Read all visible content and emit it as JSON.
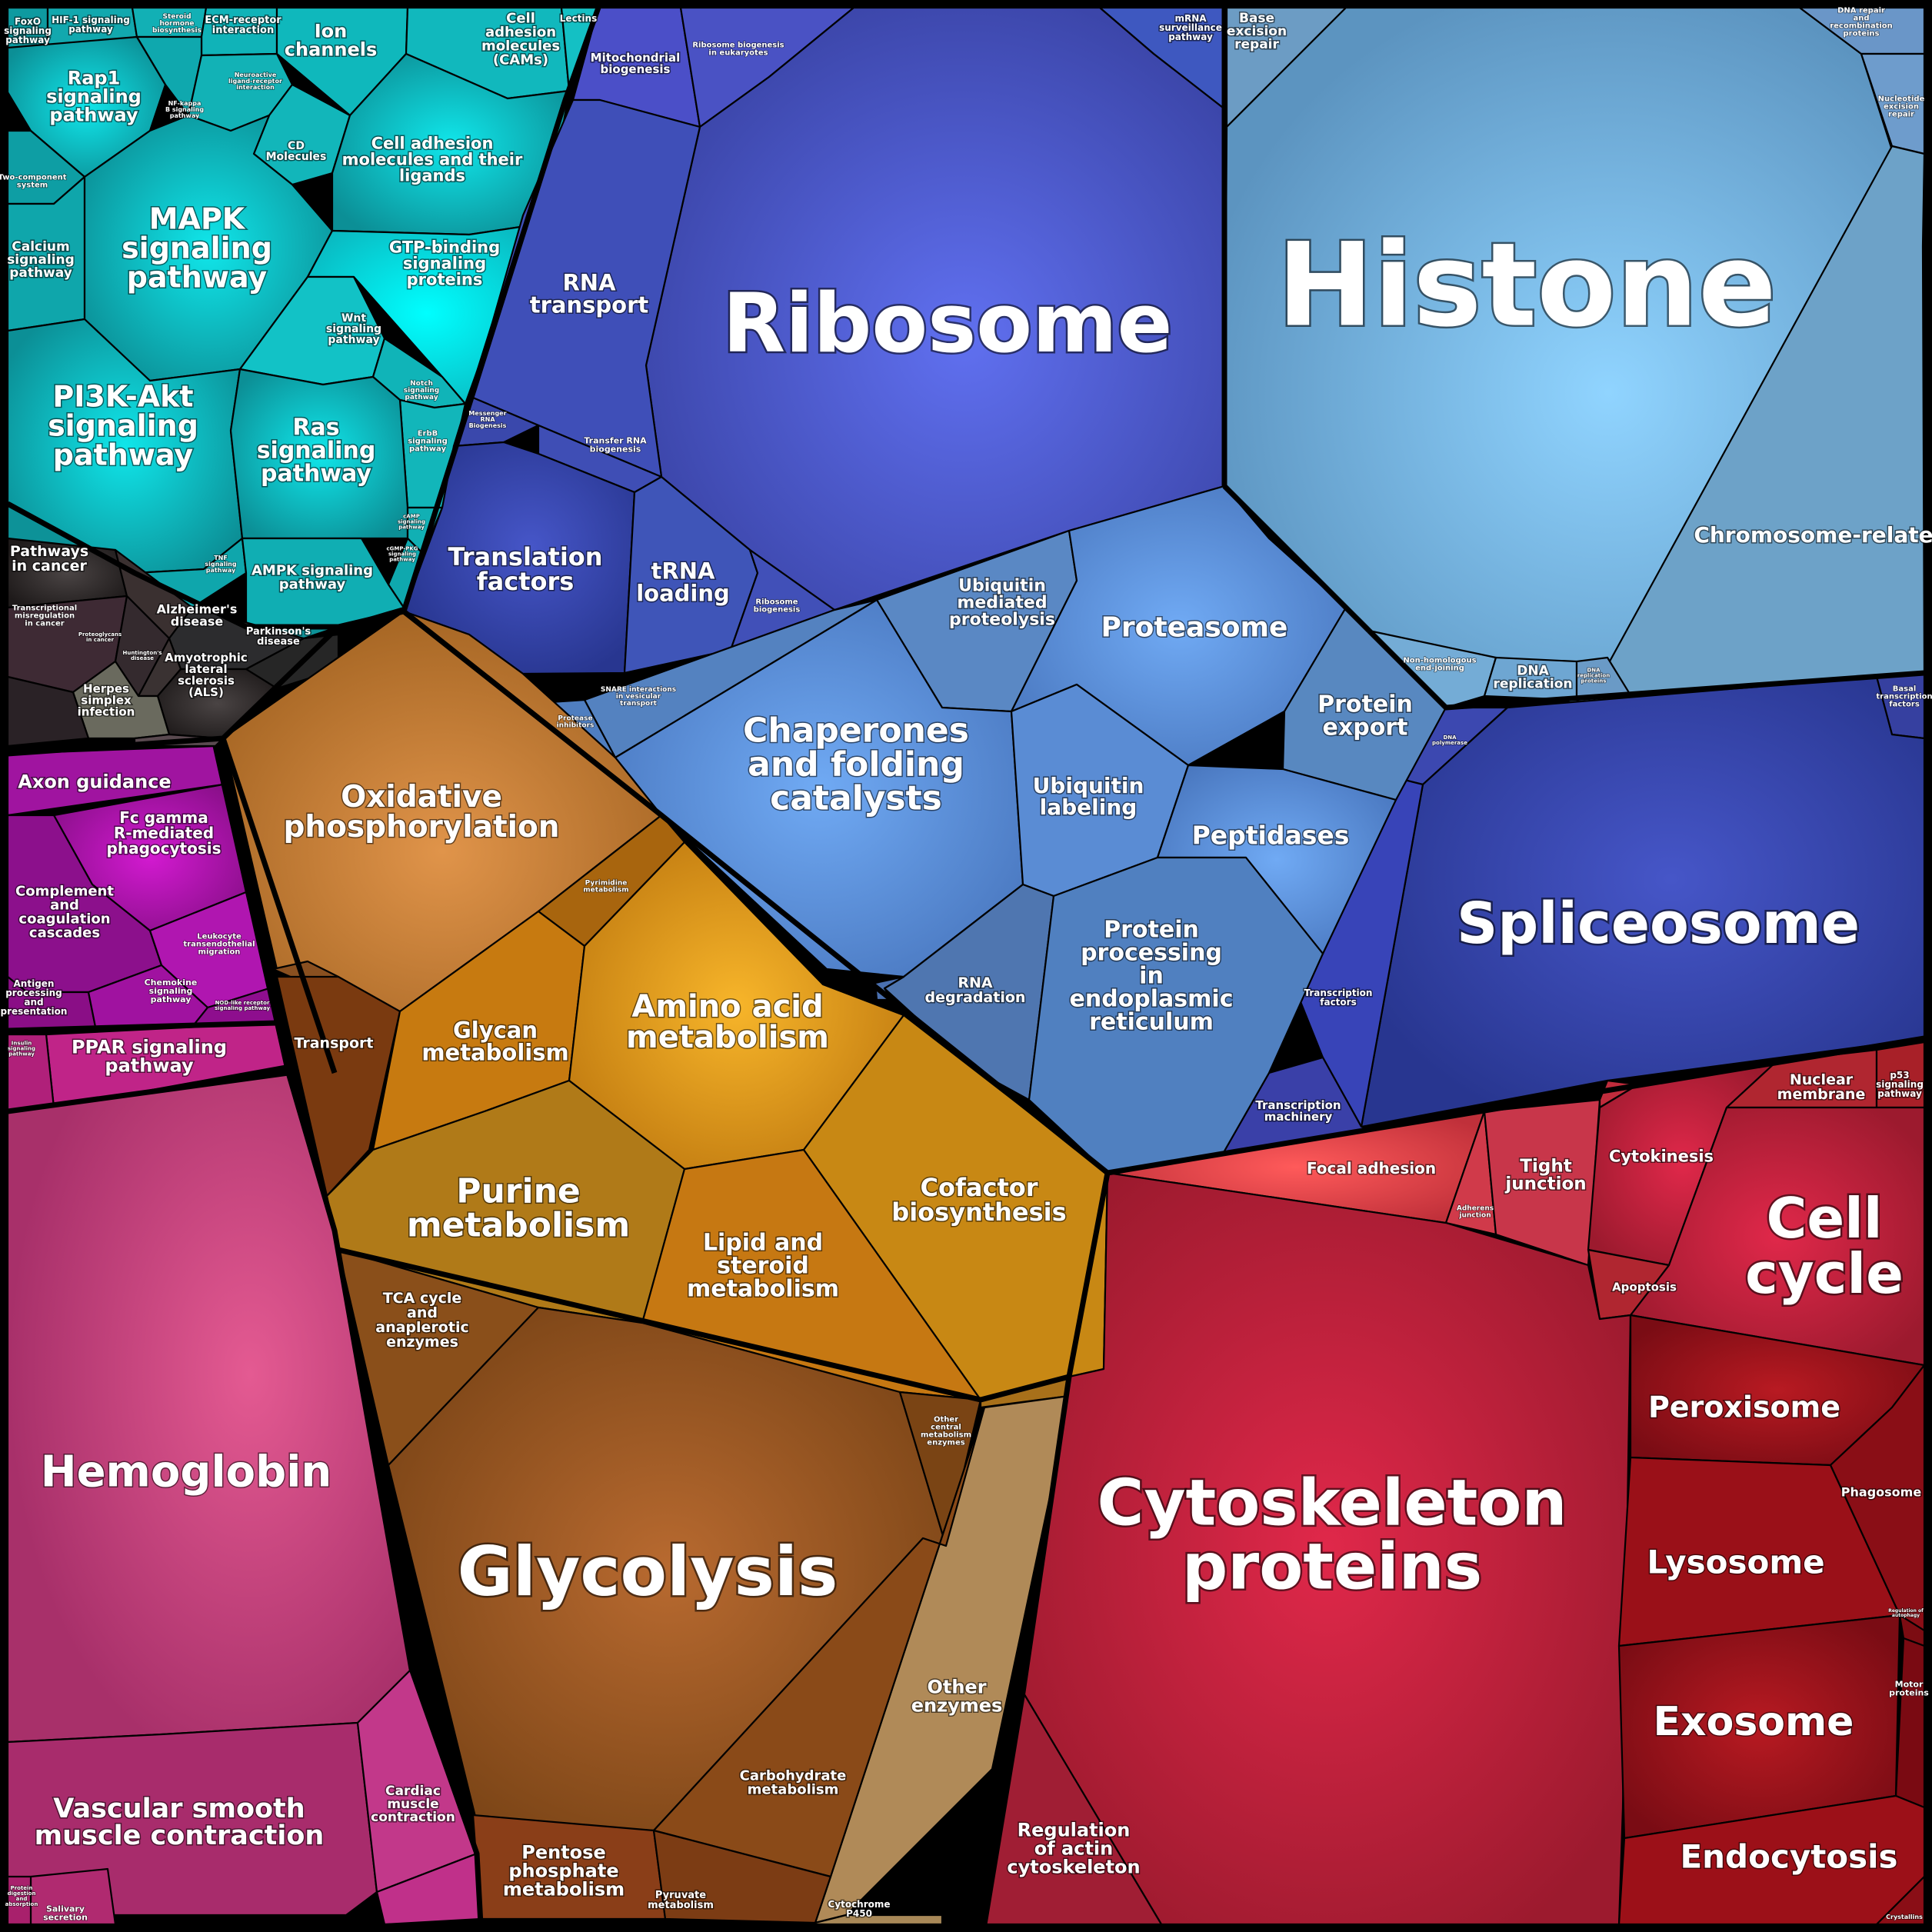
{
  "title": "",
  "groups": [
    {
      "name": "signaling",
      "color": "#17b3b8"
    },
    {
      "name": "genetic_information",
      "color": "#4a5bd0"
    },
    {
      "name": "chromatin",
      "color": "#6aaad8"
    },
    {
      "name": "protein_fate",
      "color": "#5a8fd8"
    },
    {
      "name": "metabolism",
      "color": "#c07a1a"
    },
    {
      "name": "immune_system",
      "color": "#b21aa8"
    },
    {
      "name": "circulation",
      "color": "#c0407a"
    },
    {
      "name": "cellular_processes",
      "color": "#b01a2e"
    },
    {
      "name": "disease",
      "color": "#333333"
    }
  ],
  "labels": {
    "foxo": "FoxO signaling pathway",
    "hif1": "HIF-1 signaling pathway",
    "steroid": "Steroid hormone biosynthesis",
    "ecm": "ECM-receptor interaction",
    "ion": "Ion channels",
    "cams": "Cell adhesion molecules (CAMs)",
    "lectins": "Lectins",
    "rap1": "Rap1 signaling pathway",
    "nfkb": "NF-kappa B signaling pathway",
    "neuro": "Neuroactive ligand-receptor interaction",
    "cd": "CD Molecules",
    "cam_ligands": "Cell adhesion molecules and their ligands",
    "twocomp": "Two-component system",
    "calcium": "Calcium signaling pathway",
    "mapk": "MAPK signaling pathway",
    "gtp": "GTP-binding signaling proteins",
    "wnt": "Wnt signaling pathway",
    "notch": "Notch signaling pathway",
    "erbb": "ErbB signaling pathway",
    "pi3k": "PI3K-Akt signaling pathway",
    "ras": "Ras signaling pathway",
    "camp": "cAMP signaling pathway",
    "cgmp": "cGMP-PKG signaling pathway",
    "tnf": "TNF signaling pathway",
    "ampk": "AMPK signaling pathway",
    "pathways_cancer": "Pathways in cancer",
    "transcriptional": "Transcriptional misregulation in cancer",
    "alzheimer": "Alzheimer's disease",
    "parkinson": "Parkinson's disease",
    "als": "Amyotrophic lateral sclerosis (ALS)",
    "herpes": "Herpes simplex infection",
    "huntington": "Huntington's disease",
    "proteoglycans": "Proteoglycans in cancer",
    "mito_bio": "Mitochondrial biogenesis",
    "ribo_bio_euk": "Ribosome biogenesis in eukaryotes",
    "mrna_surv": "mRNA surveillance pathway",
    "ribosome": "Ribosome",
    "rna_transport": "RNA transport",
    "messenger_rna": "Messenger RNA Biogenesis",
    "transfer_rna": "Transfer RNA biogenesis",
    "translation": "Translation factors",
    "trna": "tRNA loading",
    "ribosome_biogenesis": "Ribosome biogenesis",
    "ber": "Base excision repair",
    "histone": "Histone",
    "dna_repair": "DNA repair and recombination proteins",
    "ner": "Nucleotide excision repair",
    "chromosome": "Chromosome-related",
    "nhej": "Non-homologous end-joining",
    "dna_rep": "DNA replication",
    "dna_rep_proteins": "DNA replication proteins",
    "dna_polymerase": "DNA polymerase",
    "basal_tf": "Basal transcription factors",
    "spliceosome": "Spliceosome",
    "transcription_factors": "Transcription factors",
    "transcription_machinery": "Transcription machinery",
    "ubiquitin_prot": "Ubiquitin mediated proteolysis",
    "proteasome": "Proteasome",
    "protein_export": "Protein export",
    "snare": "SNARE interactions in vesicular transport",
    "protease_inhib": "Protease inhibitors",
    "chaperones": "Chaperones and folding catalysts",
    "ubiquitin_label": "Ubiquitin labeling",
    "peptidases": "Peptidases",
    "rna_degradation": "RNA degradation",
    "protein_er": "Protein processing in endoplasmic reticulum",
    "oxphos": "Oxidative phosphorylation",
    "pyrimidine": "Pyrimidine metabolism",
    "transport": "Transport",
    "glycan": "Glycan metabolism",
    "amino": "Amino acid metabolism",
    "purine": "Purine metabolism",
    "cofactor": "Cofactor biosynthesis",
    "lipid": "Lipid and steroid metabolism",
    "tca": "TCA cycle and anaplerotic enzymes",
    "glycolysis": "Glycolysis",
    "other_central": "Other central metabolism enzymes",
    "other_enzymes": "Other enzymes",
    "carbohydrate": "Carbohydrate metabolism",
    "pentose": "Pentose phosphate metabolism",
    "pyruvate": "Pyruvate metabolism",
    "cytochrome": "Cytochrome P450",
    "axon": "Axon guidance",
    "fc_gamma": "Fc gamma R-mediated phagocytosis",
    "complement": "Complement and coagulation cascades",
    "leukocyte": "Leukocyte transendothelial migration",
    "antigen": "Antigen processing and presentation",
    "chemokine": "Chemokine signaling pathway",
    "nod": "NOD-like receptor signaling pathway",
    "ppar": "PPAR signaling pathway",
    "insulin": "Insulin signaling pathway",
    "hemoglobin": "Hemoglobin",
    "vascular": "Vascular smooth muscle contraction",
    "cardiac": "Cardiac muscle contraction",
    "salivary": "Salivary secretion",
    "protein_digestion": "Protein digestion and absorption",
    "focal": "Focal adhesion",
    "tight": "Tight junction",
    "adherens": "Adherens junction",
    "cytokinesis": "Cytokinesis",
    "nuclear": "Nuclear membrane",
    "p53": "p53 signaling pathway",
    "cell_cycle": "Cell cycle",
    "apoptosis": "Apoptosis",
    "cytoskeleton": "Cytoskeleton proteins",
    "peroxisome": "Peroxisome",
    "phagosome": "Phagosome",
    "lysosome": "Lysosome",
    "autophagy": "Regulation of autophagy",
    "motor": "Motor proteins",
    "exosome": "Exosome",
    "endocytosis": "Endocytosis",
    "actin": "Regulation of actin cytoskeleton",
    "crystallins": "Crystallins"
  }
}
